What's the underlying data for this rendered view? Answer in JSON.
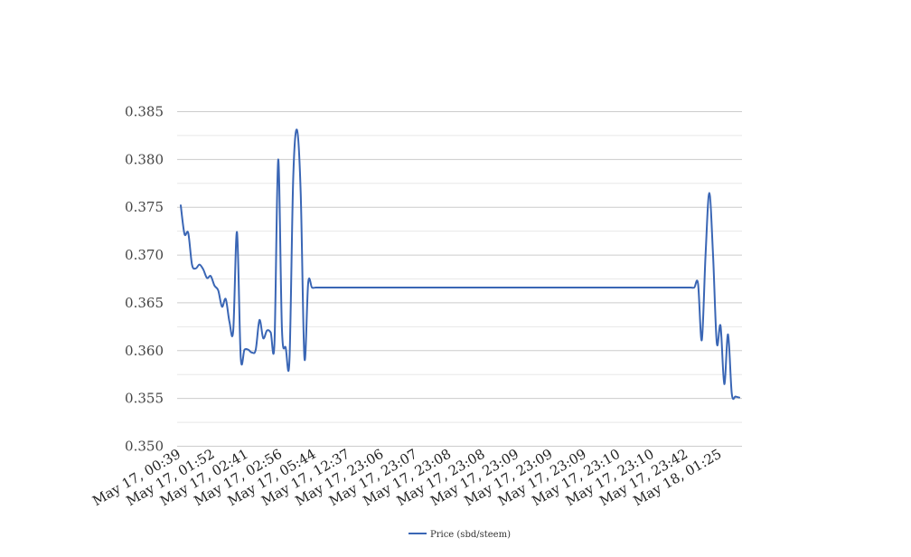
{
  "chart_data": {
    "type": "line",
    "title": "",
    "xlabel": "",
    "ylabel": "",
    "ylim": [
      0.35,
      0.385
    ],
    "y_ticks": [
      "0.350",
      "0.355",
      "0.360",
      "0.365",
      "0.370",
      "0.375",
      "0.380",
      "0.385"
    ],
    "grid": true,
    "legend_position": "bottom-center",
    "x_tick_labels": [
      "May 17, 00:39",
      "May 17, 01:52",
      "May 17, 02:41",
      "May 17, 02:56",
      "May 17, 05:44",
      "May 17, 12:37",
      "May 17, 23:06",
      "May 17, 23:07",
      "May 17, 23:08",
      "May 17, 23:08",
      "May 17, 23:09",
      "May 17, 23:09",
      "May 17, 23:09",
      "May 17, 23:10",
      "May 17, 23:10",
      "May 17, 23:42",
      "May 18, 01:25"
    ],
    "series": [
      {
        "name": "Price (sbd/steem)",
        "color": "#3a66b5",
        "values": [
          0.3752,
          0.3722,
          0.3723,
          0.369,
          0.3686,
          0.369,
          0.3685,
          0.3676,
          0.3678,
          0.3668,
          0.3663,
          0.3646,
          0.3654,
          0.363,
          0.3621,
          0.3724,
          0.3593,
          0.3601,
          0.3601,
          0.3598,
          0.3601,
          0.3632,
          0.3613,
          0.3621,
          0.3619,
          0.3608,
          0.38,
          0.3622,
          0.3603,
          0.359,
          0.378,
          0.3831,
          0.3765,
          0.3592,
          0.3671,
          0.3666,
          0.3666,
          0.3666,
          0.3666,
          0.3666,
          0.3666,
          0.3666,
          0.3666,
          0.3666,
          0.3666,
          0.3666,
          0.3666,
          0.3666,
          0.3666,
          0.3666,
          0.3666,
          0.3666,
          0.3666,
          0.3666,
          0.3666,
          0.3666,
          0.3666,
          0.3666,
          0.3666,
          0.3666,
          0.3666,
          0.3666,
          0.3666,
          0.3666,
          0.3666,
          0.3666,
          0.3666,
          0.3666,
          0.3666,
          0.3666,
          0.3666,
          0.3666,
          0.3666,
          0.3666,
          0.3666,
          0.3666,
          0.3666,
          0.3666,
          0.3666,
          0.3666,
          0.3666,
          0.3666,
          0.3666,
          0.3666,
          0.3666,
          0.3666,
          0.3666,
          0.3666,
          0.3666,
          0.3666,
          0.3666,
          0.3666,
          0.3666,
          0.3666,
          0.3666,
          0.3666,
          0.3666,
          0.3666,
          0.3666,
          0.3666,
          0.3666,
          0.3666,
          0.3666,
          0.3666,
          0.3666,
          0.3666,
          0.3666,
          0.3666,
          0.3666,
          0.3666,
          0.3666,
          0.3666,
          0.3666,
          0.3666,
          0.3666,
          0.3666,
          0.3666,
          0.3666,
          0.3666,
          0.3666,
          0.3666,
          0.3666,
          0.3666,
          0.3666,
          0.3666,
          0.3666,
          0.3666,
          0.3666,
          0.3666,
          0.3666,
          0.3666,
          0.3666,
          0.3666,
          0.3666,
          0.3666,
          0.3666,
          0.3666,
          0.3666,
          0.367,
          0.3611,
          0.37,
          0.3765,
          0.37,
          0.3608,
          0.3626,
          0.3565,
          0.3617,
          0.3555,
          0.3552,
          0.3551
        ]
      }
    ]
  }
}
